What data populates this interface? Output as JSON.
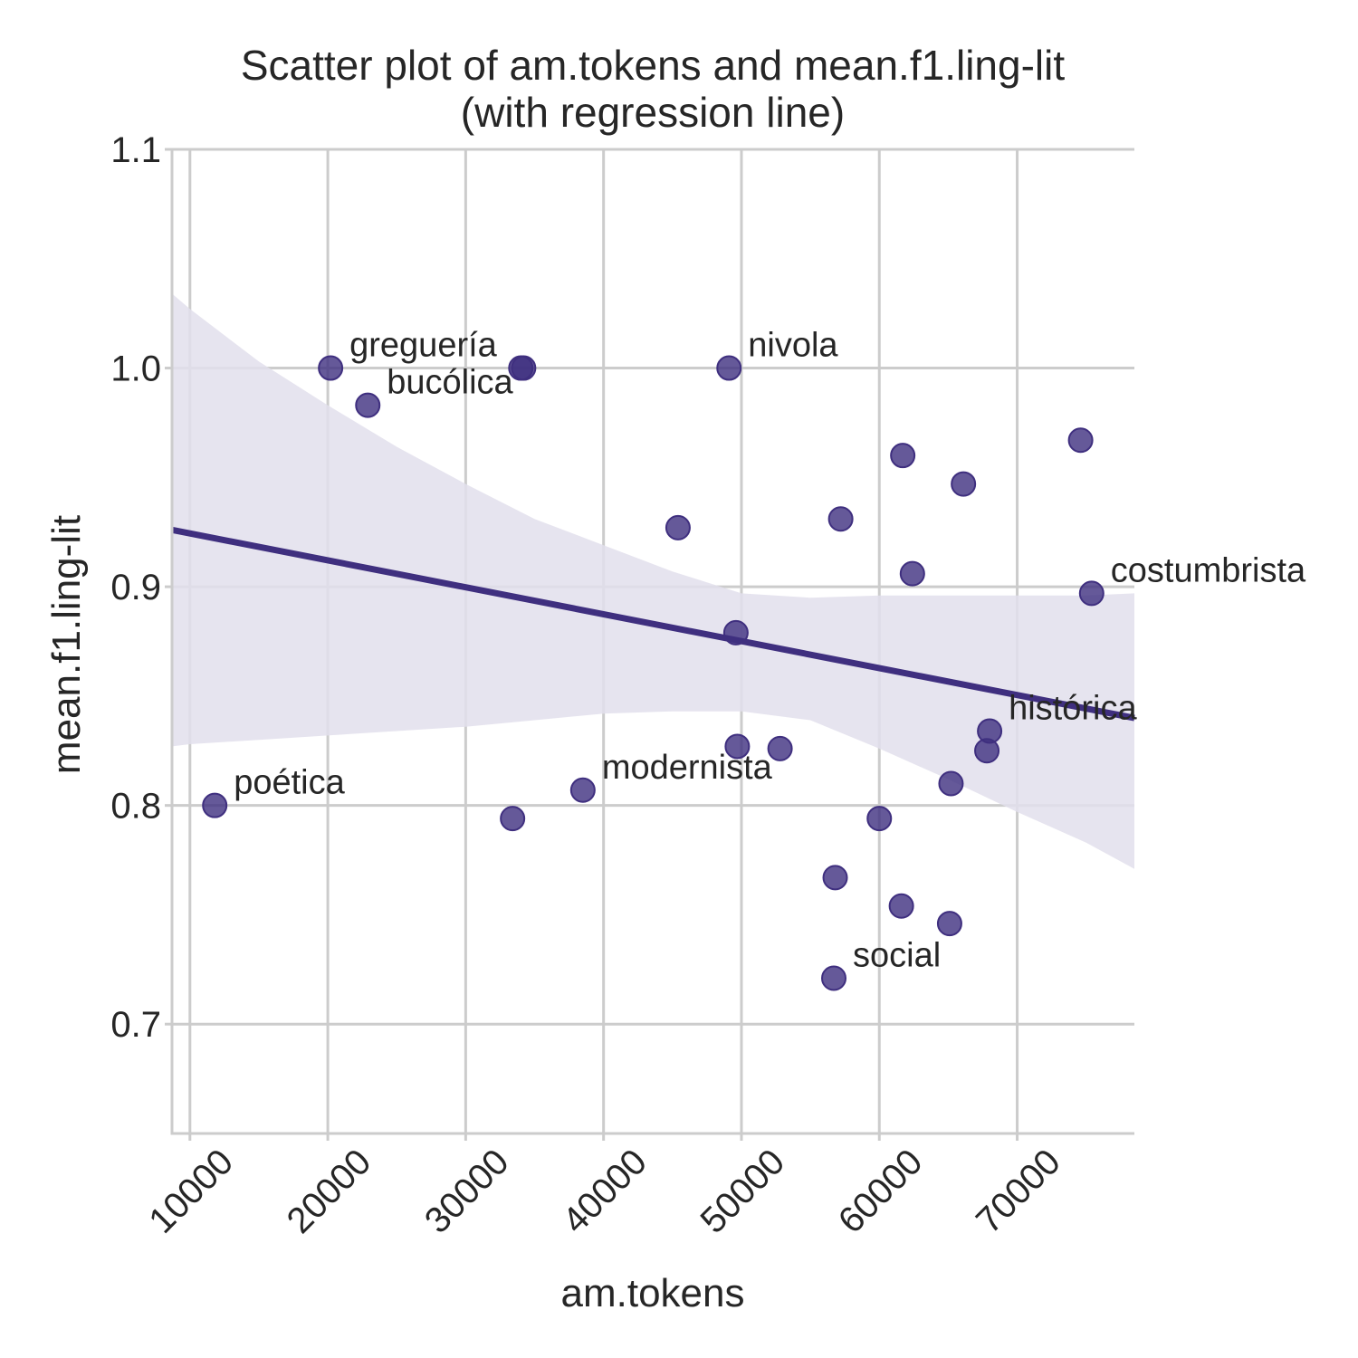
{
  "chart_data": {
    "type": "scatter",
    "title": "Scatter plot of am.tokens and mean.f1.ling-lit",
    "subtitle": "(with regression line)",
    "xlabel": "am.tokens",
    "ylabel": "mean.f1.ling-lit",
    "xlim": [
      8700,
      78500
    ],
    "ylim": [
      0.65,
      1.1
    ],
    "x_ticks": [
      10000,
      20000,
      30000,
      40000,
      50000,
      60000,
      70000
    ],
    "x_tick_labels": [
      "10000",
      "20000",
      "30000",
      "40000",
      "50000",
      "60000",
      "70000"
    ],
    "y_ticks": [
      0.7,
      0.8,
      0.9,
      1.0,
      1.1
    ],
    "y_tick_labels": [
      "0.7",
      "0.8",
      "0.9",
      "1.0",
      "1.1"
    ],
    "grid": true,
    "point_color": "#3f2f7f",
    "line_color": "#3f2f7f",
    "band_color": "#e2dfec",
    "points": [
      {
        "x": 11800,
        "y": 0.8,
        "label": "poética"
      },
      {
        "x": 20200,
        "y": 1.0,
        "label": "greguería"
      },
      {
        "x": 22900,
        "y": 0.983,
        "label": "bucólica"
      },
      {
        "x": 33400,
        "y": 0.794,
        "label": ""
      },
      {
        "x": 34000,
        "y": 1.0,
        "label": ""
      },
      {
        "x": 34200,
        "y": 1.0,
        "label": ""
      },
      {
        "x": 38500,
        "y": 0.807,
        "label": "modernista"
      },
      {
        "x": 45400,
        "y": 0.927,
        "label": ""
      },
      {
        "x": 49100,
        "y": 1.0,
        "label": "nivola"
      },
      {
        "x": 49600,
        "y": 0.879,
        "label": ""
      },
      {
        "x": 49700,
        "y": 0.827,
        "label": ""
      },
      {
        "x": 52800,
        "y": 0.826,
        "label": ""
      },
      {
        "x": 56700,
        "y": 0.721,
        "label": "social"
      },
      {
        "x": 56800,
        "y": 0.767,
        "label": ""
      },
      {
        "x": 57200,
        "y": 0.931,
        "label": ""
      },
      {
        "x": 60000,
        "y": 0.794,
        "label": ""
      },
      {
        "x": 61600,
        "y": 0.754,
        "label": ""
      },
      {
        "x": 61700,
        "y": 0.96,
        "label": ""
      },
      {
        "x": 62400,
        "y": 0.906,
        "label": ""
      },
      {
        "x": 65100,
        "y": 0.746,
        "label": ""
      },
      {
        "x": 65200,
        "y": 0.81,
        "label": ""
      },
      {
        "x": 66100,
        "y": 0.947,
        "label": ""
      },
      {
        "x": 67800,
        "y": 0.825,
        "label": ""
      },
      {
        "x": 68000,
        "y": 0.834,
        "label": "histórica"
      },
      {
        "x": 74600,
        "y": 0.967,
        "label": ""
      },
      {
        "x": 75400,
        "y": 0.897,
        "label": "costumbrista"
      }
    ],
    "regression_line": {
      "x": [
        8700,
        78500
      ],
      "y": [
        0.926,
        0.84
      ]
    },
    "confidence_band": {
      "x": [
        8700,
        10000,
        15000,
        20000,
        25000,
        30000,
        35000,
        40000,
        45000,
        50000,
        55000,
        60000,
        65000,
        70000,
        75000,
        78500
      ],
      "upper": [
        1.034,
        1.027,
        1.003,
        0.983,
        0.964,
        0.947,
        0.931,
        0.919,
        0.907,
        0.897,
        0.895,
        0.896,
        0.896,
        0.896,
        0.896,
        0.897
      ],
      "lower": [
        0.827,
        0.828,
        0.83,
        0.832,
        0.834,
        0.836,
        0.839,
        0.842,
        0.843,
        0.843,
        0.839,
        0.826,
        0.812,
        0.797,
        0.783,
        0.771
      ]
    }
  }
}
